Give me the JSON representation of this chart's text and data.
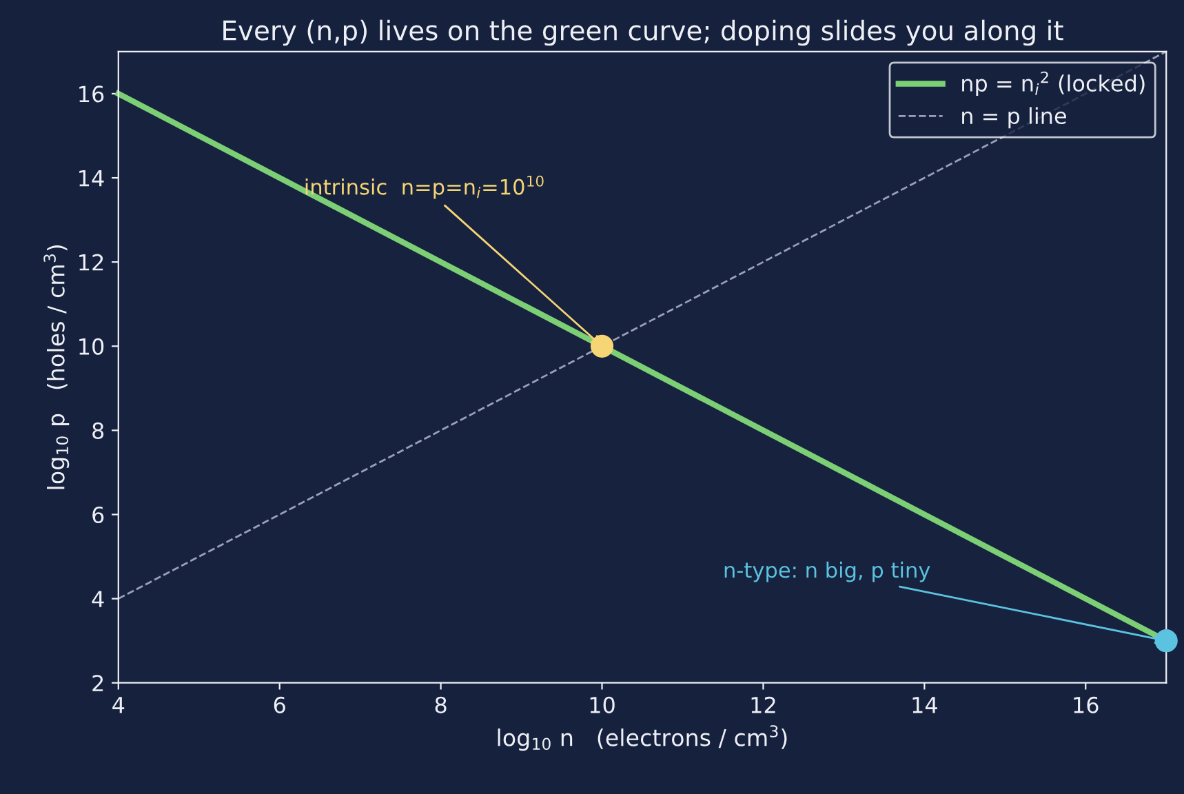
{
  "chart_data": {
    "type": "line",
    "title": "Every (n,p) lives on the green curve; doping slides you along it",
    "xlabel": "log$_{10}$ n   (electrons / cm$^{3}$)",
    "ylabel": "log$_{10}$ p   (holes / cm$^{3}$)",
    "series": [
      {
        "name": "np = n$_{i}$$^{2}$ (locked)",
        "color": "#7ccf74",
        "x": [
          4,
          17
        ],
        "values": [
          16,
          3
        ],
        "line_style": "solid"
      },
      {
        "name": "n = p line",
        "color": "#9aa0b8",
        "x": [
          4,
          17
        ],
        "values": [
          4,
          17
        ],
        "line_style": "dashed"
      },
      {
        "type": "scatter",
        "color": "#f5d574",
        "x": [
          10
        ],
        "values": [
          10
        ]
      },
      {
        "type": "scatter",
        "color": "#5bc3df",
        "x": [
          17
        ],
        "values": [
          3
        ]
      }
    ],
    "annotations": [
      {
        "text": "intrinsic  n=p=n$_{i}$=10$^{10}$",
        "x": 10,
        "y": 10
      },
      {
        "text": "n-type: n big, p tiny",
        "x": 17,
        "y": 3
      }
    ],
    "xlim": [
      4,
      17
    ],
    "xticks": [
      4,
      6,
      8,
      10,
      12,
      14,
      16
    ],
    "ylim": [
      2,
      17
    ],
    "yticks": [
      2,
      4,
      6,
      8,
      10,
      12,
      14,
      16
    ],
    "legend": "top right"
  }
}
